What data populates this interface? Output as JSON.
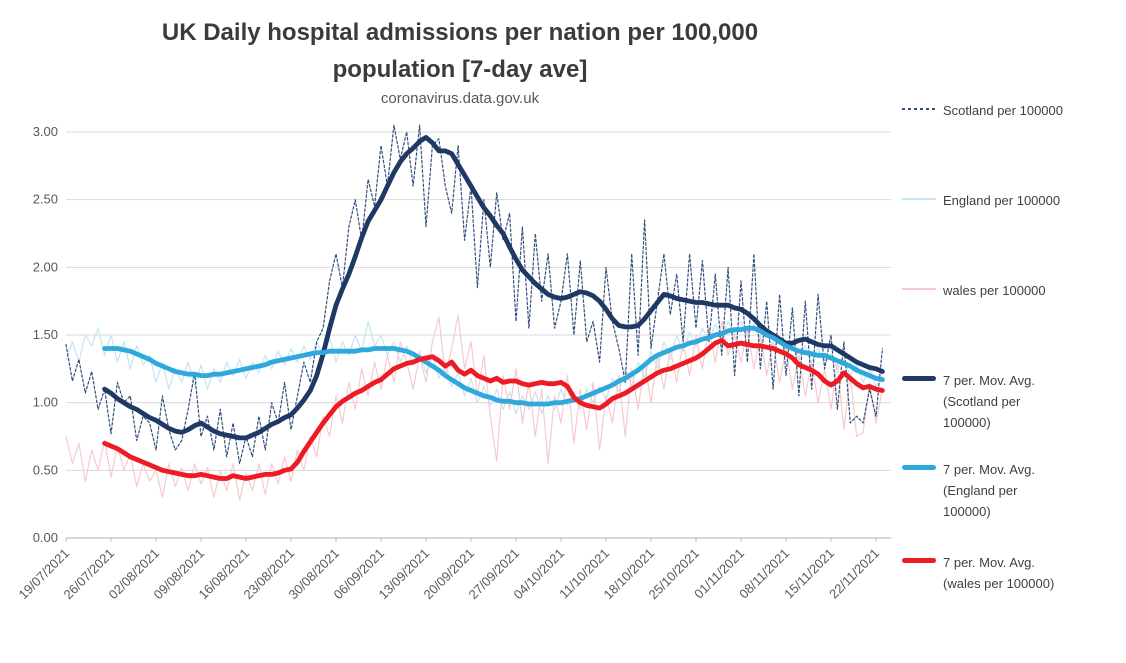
{
  "title": {
    "line1": "UK Daily hospital admissions per nation per 100,000",
    "line2": "population [7-day ave]",
    "subtitle": "coronavirus.data.gov.uk"
  },
  "colors": {
    "scotland_navy": "#1F3864",
    "scotland_daily_navy": "#34507F",
    "england_cyan": "#2FA8DC",
    "england_daily_pale": "#C3E5F3",
    "wales_red": "#EC1B24",
    "wales_daily_pale": "#F6CACE",
    "gridline": "#D9D9D9",
    "axis": "#BFBFBF",
    "tick_text": "#595959",
    "legend_text": "#404040",
    "title_text": "#3B3B3B"
  },
  "legend": {
    "position": "right",
    "items": [
      {
        "label": "Scotland per 100000",
        "swatch": "dashed-thin",
        "color": "#34507F"
      },
      {
        "label": "England per 100000",
        "swatch": "thin",
        "color": "#C3E5F3"
      },
      {
        "label": "wales per 100000",
        "swatch": "thin",
        "color": "#F6CACE"
      },
      {
        "label": "7 per. Mov. Avg. (Scotland per 100000)",
        "swatch": "thick",
        "color": "#1F3864"
      },
      {
        "label": "7 per. Mov. Avg. (England per 100000)",
        "swatch": "thick",
        "color": "#2FA8DC"
      },
      {
        "label": "7 per. Mov. Avg. (wales per 100000)",
        "swatch": "thick",
        "color": "#EC1B24"
      }
    ]
  },
  "chart_data": {
    "type": "line",
    "title": "UK Daily hospital admissions per nation per 100,000 population [7-day ave]",
    "subtitle": "coronavirus.data.gov.uk",
    "xlabel": "",
    "ylabel": "",
    "ylim": [
      0,
      3.0
    ],
    "grid": "horizontal",
    "legend_position": "right",
    "y_tick_values": [
      0,
      0.5,
      1,
      1.5,
      2,
      2.5,
      3
    ],
    "y_tick_labels": [
      "0.00",
      "0.50",
      "1.00",
      "1.50",
      "2.00",
      "2.50",
      "3.00"
    ],
    "x_tick_labels": [
      "19/07/2021",
      "26/07/2021",
      "02/08/2021",
      "09/08/2021",
      "16/08/2021",
      "23/08/2021",
      "30/08/2021",
      "06/09/2021",
      "13/09/2021",
      "20/09/2021",
      "27/09/2021",
      "04/10/2021",
      "11/10/2021",
      "18/10/2021",
      "25/10/2021",
      "01/11/2021",
      "08/11/2021",
      "15/11/2021",
      "22/11/2021"
    ],
    "days_per_tick": 7,
    "series": [
      {
        "name": "Scotland per 100000",
        "role": "daily",
        "line": "dashed-thin",
        "color": "#34507F",
        "start_day": 0,
        "values": [
          1.43,
          1.16,
          1.32,
          1.07,
          1.23,
          0.95,
          1.1,
          0.77,
          1.15,
          1.0,
          1.05,
          0.72,
          0.9,
          0.85,
          0.65,
          1.05,
          0.8,
          0.65,
          0.72,
          0.95,
          1.22,
          0.75,
          0.9,
          0.65,
          0.95,
          0.6,
          0.85,
          0.55,
          0.75,
          0.6,
          0.9,
          0.65,
          1.0,
          0.85,
          1.15,
          0.8,
          1.05,
          1.3,
          1.15,
          1.45,
          1.55,
          1.9,
          2.1,
          1.85,
          2.3,
          2.5,
          2.2,
          2.65,
          2.45,
          2.9,
          2.6,
          3.05,
          2.8,
          3.0,
          2.6,
          3.05,
          2.3,
          2.9,
          2.95,
          2.6,
          2.4,
          2.9,
          2.2,
          2.6,
          1.85,
          2.5,
          2.0,
          2.55,
          2.2,
          2.4,
          1.6,
          2.3,
          1.55,
          2.25,
          1.75,
          2.1,
          1.55,
          1.75,
          2.1,
          1.5,
          2.05,
          1.45,
          1.6,
          1.3,
          2.0,
          1.6,
          1.4,
          1.15,
          2.1,
          1.35,
          2.35,
          1.4,
          1.75,
          2.1,
          1.65,
          1.95,
          1.45,
          2.1,
          1.55,
          2.05,
          1.45,
          1.95,
          1.35,
          2.0,
          1.2,
          1.9,
          1.3,
          2.1,
          1.25,
          1.75,
          1.1,
          1.8,
          1.2,
          1.7,
          1.05,
          1.75,
          1.1,
          1.8,
          1.25,
          1.5,
          0.95,
          1.45,
          0.85,
          0.9,
          0.85,
          1.1,
          0.9,
          1.4
        ]
      },
      {
        "name": "England per 100000",
        "role": "daily",
        "line": "thin",
        "color": "#C3E5F3",
        "start_day": 0,
        "values": [
          1.32,
          1.45,
          1.3,
          1.5,
          1.42,
          1.55,
          1.35,
          1.5,
          1.3,
          1.45,
          1.25,
          1.42,
          1.28,
          1.35,
          1.15,
          1.3,
          1.1,
          1.25,
          1.15,
          1.3,
          1.12,
          1.28,
          1.1,
          1.25,
          1.15,
          1.3,
          1.2,
          1.32,
          1.18,
          1.3,
          1.22,
          1.35,
          1.25,
          1.38,
          1.28,
          1.4,
          1.3,
          1.42,
          1.32,
          1.45,
          1.35,
          1.48,
          1.3,
          1.45,
          1.35,
          1.5,
          1.38,
          1.6,
          1.42,
          1.5,
          1.35,
          1.45,
          1.3,
          1.42,
          1.28,
          1.38,
          1.22,
          1.35,
          1.18,
          1.28,
          1.12,
          1.22,
          1.05,
          1.18,
          1.0,
          1.12,
          0.98,
          1.1,
          0.95,
          1.08,
          0.92,
          1.05,
          0.95,
          1.08,
          0.92,
          1.05,
          0.95,
          1.1,
          0.98,
          1.08,
          0.95,
          1.1,
          1.0,
          1.12,
          1.02,
          1.18,
          1.08,
          1.25,
          1.12,
          1.3,
          1.18,
          1.38,
          1.25,
          1.45,
          1.32,
          1.5,
          1.38,
          1.52,
          1.42,
          1.55,
          1.45,
          1.58,
          1.48,
          1.6,
          1.5,
          1.6,
          1.5,
          1.58,
          1.45,
          1.52,
          1.4,
          1.48,
          1.35,
          1.45,
          1.32,
          1.42,
          1.3,
          1.4,
          1.28,
          1.36,
          1.25,
          1.32,
          1.2,
          1.28,
          1.15,
          1.25,
          1.12,
          1.2
        ]
      },
      {
        "name": "wales per 100000",
        "role": "daily",
        "line": "thin",
        "color": "#F6CACE",
        "start_day": 0,
        "values": [
          0.75,
          0.55,
          0.7,
          0.42,
          0.65,
          0.5,
          0.72,
          0.45,
          0.68,
          0.5,
          0.62,
          0.38,
          0.55,
          0.42,
          0.5,
          0.3,
          0.55,
          0.38,
          0.52,
          0.35,
          0.55,
          0.4,
          0.52,
          0.3,
          0.5,
          0.35,
          0.55,
          0.28,
          0.48,
          0.35,
          0.55,
          0.32,
          0.55,
          0.4,
          0.6,
          0.42,
          0.65,
          0.5,
          0.75,
          0.6,
          0.9,
          0.75,
          1.05,
          0.85,
          1.15,
          0.95,
          1.25,
          1.05,
          1.3,
          1.1,
          1.35,
          1.15,
          1.45,
          1.3,
          1.1,
          1.35,
          1.15,
          1.45,
          1.63,
          1.2,
          1.4,
          1.65,
          1.25,
          1.45,
          1.05,
          1.35,
          0.9,
          0.57,
          1.2,
          0.95,
          1.25,
          0.85,
          1.15,
          0.75,
          1.1,
          0.55,
          1.05,
          0.85,
          1.2,
          0.7,
          1.1,
          0.8,
          1.15,
          0.65,
          1.05,
          0.85,
          1.2,
          0.75,
          1.25,
          0.95,
          1.3,
          1.0,
          1.35,
          1.1,
          1.4,
          1.15,
          1.45,
          1.2,
          1.5,
          1.25,
          1.55,
          1.3,
          1.6,
          1.35,
          1.5,
          1.3,
          1.55,
          1.25,
          1.5,
          1.2,
          1.45,
          1.15,
          1.4,
          1.1,
          1.35,
          1.05,
          1.3,
          1.0,
          1.25,
          0.95,
          1.3,
          0.8,
          1.2,
          0.75,
          0.78,
          1.15,
          0.85,
          1.1
        ]
      },
      {
        "name": "7 per. Mov. Avg. (Scotland per 100000)",
        "role": "moving-average",
        "line": "thick",
        "color": "#1F3864",
        "start_day": 6,
        "values": [
          1.1,
          1.07,
          1.03,
          1.0,
          0.97,
          0.95,
          0.92,
          0.89,
          0.87,
          0.84,
          0.81,
          0.79,
          0.78,
          0.8,
          0.83,
          0.85,
          0.82,
          0.79,
          0.77,
          0.76,
          0.75,
          0.74,
          0.74,
          0.76,
          0.78,
          0.81,
          0.84,
          0.86,
          0.89,
          0.91,
          0.96,
          1.02,
          1.09,
          1.2,
          1.36,
          1.55,
          1.72,
          1.84,
          1.95,
          2.08,
          2.22,
          2.34,
          2.42,
          2.5,
          2.6,
          2.7,
          2.78,
          2.84,
          2.88,
          2.93,
          2.96,
          2.92,
          2.86,
          2.86,
          2.84,
          2.76,
          2.68,
          2.6,
          2.52,
          2.44,
          2.38,
          2.31,
          2.25,
          2.15,
          2.06,
          1.98,
          1.93,
          1.88,
          1.84,
          1.8,
          1.78,
          1.77,
          1.78,
          1.8,
          1.82,
          1.81,
          1.79,
          1.75,
          1.69,
          1.62,
          1.57,
          1.56,
          1.56,
          1.57,
          1.62,
          1.68,
          1.74,
          1.8,
          1.79,
          1.77,
          1.76,
          1.75,
          1.74,
          1.74,
          1.73,
          1.72,
          1.72,
          1.72,
          1.7,
          1.69,
          1.66,
          1.62,
          1.57,
          1.53,
          1.5,
          1.47,
          1.44,
          1.44,
          1.46,
          1.47,
          1.45,
          1.43,
          1.42,
          1.42,
          1.39,
          1.36,
          1.33,
          1.3,
          1.28,
          1.26,
          1.25,
          1.23
        ]
      },
      {
        "name": "7 per. Mov. Avg. (England per 100000)",
        "role": "moving-average",
        "line": "thick",
        "color": "#2FA8DC",
        "start_day": 6,
        "values": [
          1.4,
          1.4,
          1.4,
          1.39,
          1.38,
          1.36,
          1.34,
          1.32,
          1.29,
          1.27,
          1.25,
          1.23,
          1.22,
          1.21,
          1.21,
          1.2,
          1.2,
          1.21,
          1.21,
          1.22,
          1.23,
          1.24,
          1.25,
          1.26,
          1.27,
          1.28,
          1.3,
          1.31,
          1.32,
          1.33,
          1.34,
          1.35,
          1.36,
          1.37,
          1.37,
          1.38,
          1.38,
          1.38,
          1.38,
          1.38,
          1.39,
          1.39,
          1.4,
          1.4,
          1.4,
          1.4,
          1.39,
          1.38,
          1.36,
          1.33,
          1.3,
          1.27,
          1.24,
          1.2,
          1.17,
          1.14,
          1.11,
          1.09,
          1.07,
          1.05,
          1.04,
          1.02,
          1.01,
          1.01,
          1.0,
          1.0,
          0.99,
          0.99,
          0.99,
          0.99,
          1.0,
          1.0,
          1.01,
          1.02,
          1.03,
          1.05,
          1.07,
          1.09,
          1.11,
          1.13,
          1.16,
          1.18,
          1.21,
          1.24,
          1.28,
          1.32,
          1.35,
          1.37,
          1.39,
          1.41,
          1.42,
          1.44,
          1.45,
          1.47,
          1.48,
          1.5,
          1.51,
          1.53,
          1.54,
          1.54,
          1.55,
          1.55,
          1.53,
          1.5,
          1.48,
          1.45,
          1.42,
          1.4,
          1.38,
          1.37,
          1.36,
          1.35,
          1.35,
          1.33,
          1.31,
          1.29,
          1.27,
          1.24,
          1.22,
          1.2,
          1.18,
          1.17
        ]
      },
      {
        "name": "7 per. Mov. Avg. (wales per 100000)",
        "role": "moving-average",
        "line": "thick",
        "color": "#EC1B24",
        "start_day": 6,
        "values": [
          0.7,
          0.68,
          0.66,
          0.63,
          0.6,
          0.58,
          0.56,
          0.54,
          0.52,
          0.5,
          0.49,
          0.48,
          0.47,
          0.46,
          0.46,
          0.47,
          0.46,
          0.45,
          0.44,
          0.44,
          0.46,
          0.45,
          0.44,
          0.45,
          0.46,
          0.47,
          0.47,
          0.48,
          0.5,
          0.51,
          0.56,
          0.64,
          0.71,
          0.78,
          0.85,
          0.91,
          0.97,
          1.01,
          1.04,
          1.07,
          1.09,
          1.12,
          1.15,
          1.17,
          1.21,
          1.25,
          1.27,
          1.29,
          1.3,
          1.32,
          1.33,
          1.34,
          1.31,
          1.27,
          1.3,
          1.24,
          1.21,
          1.24,
          1.2,
          1.18,
          1.16,
          1.18,
          1.15,
          1.16,
          1.16,
          1.14,
          1.13,
          1.14,
          1.15,
          1.14,
          1.14,
          1.15,
          1.12,
          1.04,
          1.0,
          0.98,
          0.97,
          0.96,
          0.99,
          1.03,
          1.05,
          1.07,
          1.1,
          1.13,
          1.16,
          1.19,
          1.22,
          1.24,
          1.25,
          1.27,
          1.29,
          1.31,
          1.33,
          1.36,
          1.4,
          1.44,
          1.46,
          1.42,
          1.43,
          1.44,
          1.43,
          1.42,
          1.42,
          1.41,
          1.4,
          1.38,
          1.36,
          1.33,
          1.28,
          1.26,
          1.24,
          1.21,
          1.16,
          1.13,
          1.16,
          1.22,
          1.18,
          1.14,
          1.11,
          1.12,
          1.1,
          1.09
        ]
      }
    ]
  }
}
